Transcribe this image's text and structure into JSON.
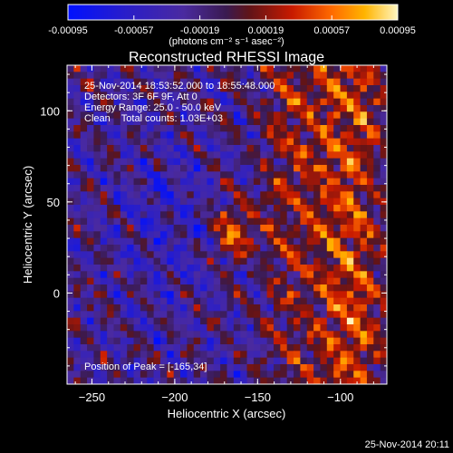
{
  "chart_data": {
    "type": "heatmap",
    "title": "Reconstructed RHESSI Image",
    "xlabel": "Heliocentric X (arcsec)",
    "ylabel": "Heliocentric Y (arcsec)",
    "xlim": [
      -265,
      -72
    ],
    "ylim": [
      -50,
      125
    ],
    "x_ticks": [
      -250,
      -200,
      -150,
      -100
    ],
    "y_ticks": [
      0,
      50,
      100
    ],
    "colorbar": {
      "min": -0.00095,
      "max": 0.00095,
      "tick_values": [
        -0.00095,
        -0.00057,
        -0.00019,
        0.00019,
        0.00057,
        0.00095
      ],
      "tick_labels": [
        "-0.00095",
        "-0.00057",
        "-0.00019",
        "0.00019",
        "0.00057",
        "0.00095"
      ],
      "unit_label": "(photons cm⁻² s⁻¹ asec⁻²)"
    },
    "annotations": [
      "25-Nov-2014 18:53:52.000 to 18:55:48.000",
      "Detectors: 3F 6F 9F, Att 0",
      "Energy Range: 25.0 - 50.0 keV",
      "Clean    Total counts: 1.03E+03"
    ],
    "peak_label": "Position of Peak = [-165,34]",
    "peak": [
      -165,
      34
    ],
    "grid": false
  },
  "footer_timestamp": "25-Nov-2014 20:11"
}
